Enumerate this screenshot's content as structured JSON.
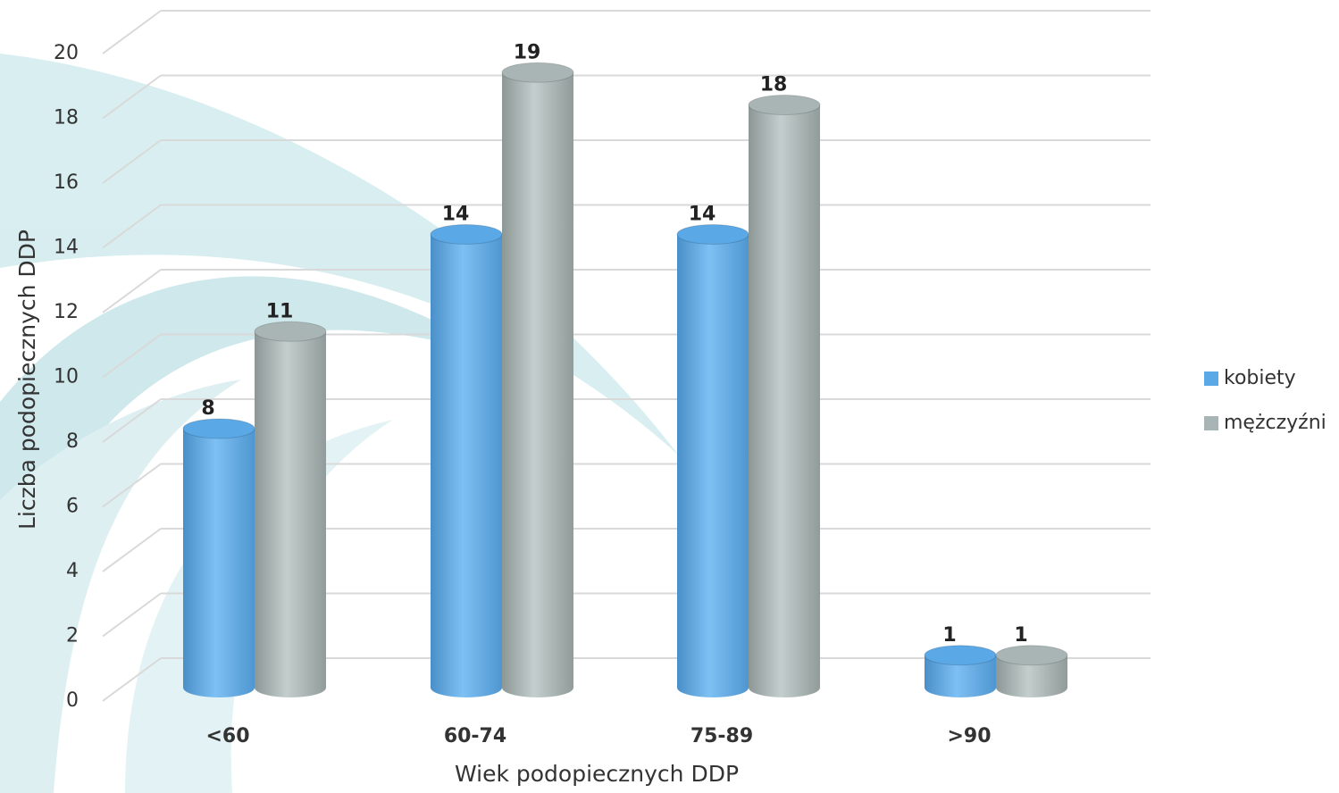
{
  "chart_data": {
    "type": "bar3d",
    "y_label": "Liczba podopiecznych DDP",
    "x_label": "Wiek podopiecznych DDP",
    "categories": [
      "<60",
      "60-74",
      "75-89",
      ">90"
    ],
    "series": [
      {
        "name": "kobiety",
        "color": "#5aa8e6",
        "values": [
          8,
          14,
          14,
          1
        ]
      },
      {
        "name": "mężczyźni",
        "color": "#a9b5b4",
        "values": [
          11,
          19,
          18,
          1
        ]
      }
    ],
    "ylim": [
      0,
      20
    ],
    "yticks": [
      0,
      2,
      4,
      6,
      8,
      10,
      12,
      14,
      16,
      18,
      20
    ],
    "grid": true,
    "legend": "right"
  }
}
